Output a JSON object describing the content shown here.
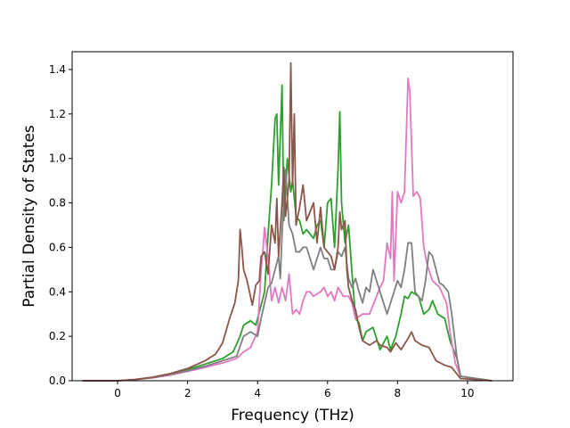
{
  "chart_data": {
    "type": "line",
    "title": "",
    "xlabel": "Frequency (THz)",
    "ylabel": "Partial Density of States",
    "xlim": [
      -1.3,
      11.3
    ],
    "ylim": [
      0,
      1.48
    ],
    "xticks": [
      0,
      2,
      4,
      6,
      8,
      10
    ],
    "yticks": [
      0.0,
      0.2,
      0.4,
      0.6,
      0.8,
      1.0,
      1.2,
      1.4
    ],
    "xtick_labels": [
      "0",
      "2",
      "4",
      "6",
      "8",
      "10"
    ],
    "ytick_labels": [
      "0.0",
      "0.2",
      "0.4",
      "0.6",
      "0.8",
      "1.0",
      "1.2",
      "1.4"
    ],
    "grid": false,
    "legend": "none",
    "series": [
      {
        "color": "#2ca02c",
        "points": [
          [
            -1.0,
            0
          ],
          [
            0,
            0
          ],
          [
            0.5,
            0.005
          ],
          [
            1,
            0.015
          ],
          [
            1.5,
            0.03
          ],
          [
            2,
            0.05
          ],
          [
            2.5,
            0.075
          ],
          [
            3,
            0.1
          ],
          [
            3.3,
            0.13
          ],
          [
            3.5,
            0.2
          ],
          [
            3.6,
            0.25
          ],
          [
            3.8,
            0.27
          ],
          [
            3.95,
            0.25
          ],
          [
            4.1,
            0.34
          ],
          [
            4.2,
            0.4
          ],
          [
            4.3,
            0.66
          ],
          [
            4.4,
            0.88
          ],
          [
            4.5,
            1.18
          ],
          [
            4.55,
            1.2
          ],
          [
            4.6,
            0.88
          ],
          [
            4.7,
            1.33
          ],
          [
            4.75,
            0.72
          ],
          [
            4.85,
            1.0
          ],
          [
            4.95,
            0.85
          ],
          [
            5.0,
            0.9
          ],
          [
            5.1,
            0.74
          ],
          [
            5.2,
            0.72
          ],
          [
            5.3,
            0.66
          ],
          [
            5.4,
            0.68
          ],
          [
            5.5,
            0.66
          ],
          [
            5.6,
            0.64
          ],
          [
            5.7,
            0.7
          ],
          [
            5.8,
            0.72
          ],
          [
            5.9,
            0.6
          ],
          [
            6.0,
            0.8
          ],
          [
            6.1,
            0.82
          ],
          [
            6.2,
            0.6
          ],
          [
            6.3,
            0.95
          ],
          [
            6.35,
            1.21
          ],
          [
            6.4,
            0.8
          ],
          [
            6.5,
            0.62
          ],
          [
            6.6,
            0.7
          ],
          [
            6.7,
            0.48
          ],
          [
            6.8,
            0.28
          ],
          [
            6.9,
            0.26
          ],
          [
            7.0,
            0.18
          ],
          [
            7.1,
            0.22
          ],
          [
            7.3,
            0.24
          ],
          [
            7.5,
            0.14
          ],
          [
            7.7,
            0.2
          ],
          [
            7.8,
            0.14
          ],
          [
            7.95,
            0.2
          ],
          [
            8.1,
            0.3
          ],
          [
            8.2,
            0.38
          ],
          [
            8.3,
            0.37
          ],
          [
            8.4,
            0.4
          ],
          [
            8.6,
            0.38
          ],
          [
            8.75,
            0.3
          ],
          [
            8.9,
            0.32
          ],
          [
            9.0,
            0.36
          ],
          [
            9.15,
            0.3
          ],
          [
            9.35,
            0.28
          ],
          [
            9.5,
            0.18
          ],
          [
            9.7,
            0.1
          ],
          [
            9.8,
            0.02
          ],
          [
            10.7,
            0
          ]
        ]
      },
      {
        "color": "#e377c2",
        "points": [
          [
            -1.0,
            0
          ],
          [
            0,
            0
          ],
          [
            0.5,
            0.005
          ],
          [
            1,
            0.013
          ],
          [
            1.5,
            0.025
          ],
          [
            2,
            0.042
          ],
          [
            2.5,
            0.06
          ],
          [
            3,
            0.08
          ],
          [
            3.4,
            0.1
          ],
          [
            3.6,
            0.13
          ],
          [
            3.8,
            0.15
          ],
          [
            4.0,
            0.22
          ],
          [
            4.1,
            0.5
          ],
          [
            4.15,
            0.58
          ],
          [
            4.2,
            0.69
          ],
          [
            4.3,
            0.55
          ],
          [
            4.4,
            0.36
          ],
          [
            4.5,
            0.42
          ],
          [
            4.6,
            0.35
          ],
          [
            4.7,
            0.42
          ],
          [
            4.8,
            0.36
          ],
          [
            4.9,
            0.48
          ],
          [
            5.0,
            0.3
          ],
          [
            5.1,
            0.32
          ],
          [
            5.2,
            0.3
          ],
          [
            5.3,
            0.36
          ],
          [
            5.4,
            0.4
          ],
          [
            5.5,
            0.4
          ],
          [
            5.6,
            0.38
          ],
          [
            5.8,
            0.4
          ],
          [
            5.9,
            0.42
          ],
          [
            6.0,
            0.38
          ],
          [
            6.1,
            0.4
          ],
          [
            6.2,
            0.36
          ],
          [
            6.3,
            0.42
          ],
          [
            6.45,
            0.38
          ],
          [
            6.6,
            0.38
          ],
          [
            6.7,
            0.35
          ],
          [
            6.8,
            0.28
          ],
          [
            7.0,
            0.3
          ],
          [
            7.2,
            0.3
          ],
          [
            7.4,
            0.38
          ],
          [
            7.5,
            0.42
          ],
          [
            7.6,
            0.45
          ],
          [
            7.7,
            0.62
          ],
          [
            7.8,
            0.55
          ],
          [
            7.85,
            0.85
          ],
          [
            7.9,
            0.45
          ],
          [
            8.0,
            0.85
          ],
          [
            8.1,
            0.8
          ],
          [
            8.2,
            0.85
          ],
          [
            8.3,
            1.36
          ],
          [
            8.35,
            1.3
          ],
          [
            8.45,
            0.83
          ],
          [
            8.55,
            0.85
          ],
          [
            8.65,
            0.82
          ],
          [
            8.75,
            0.6
          ],
          [
            8.85,
            0.52
          ],
          [
            9.0,
            0.45
          ],
          [
            9.2,
            0.42
          ],
          [
            9.4,
            0.35
          ],
          [
            9.5,
            0.22
          ],
          [
            9.65,
            0.08
          ],
          [
            9.8,
            0.02
          ],
          [
            10.7,
            0
          ]
        ]
      },
      {
        "color": "#7f7f7f",
        "points": [
          [
            -1.0,
            0
          ],
          [
            0,
            0
          ],
          [
            0.5,
            0.005
          ],
          [
            1,
            0.014
          ],
          [
            1.5,
            0.028
          ],
          [
            2,
            0.045
          ],
          [
            2.5,
            0.065
          ],
          [
            3,
            0.09
          ],
          [
            3.4,
            0.11
          ],
          [
            3.6,
            0.2
          ],
          [
            3.8,
            0.22
          ],
          [
            4.0,
            0.2
          ],
          [
            4.1,
            0.28
          ],
          [
            4.3,
            0.42
          ],
          [
            4.4,
            0.44
          ],
          [
            4.5,
            0.5
          ],
          [
            4.6,
            0.56
          ],
          [
            4.65,
            0.46
          ],
          [
            4.7,
            0.66
          ],
          [
            4.8,
            0.95
          ],
          [
            4.9,
            0.7
          ],
          [
            5.0,
            0.66
          ],
          [
            5.1,
            0.58
          ],
          [
            5.2,
            0.58
          ],
          [
            5.3,
            0.6
          ],
          [
            5.4,
            0.6
          ],
          [
            5.5,
            0.55
          ],
          [
            5.6,
            0.5
          ],
          [
            5.7,
            0.55
          ],
          [
            5.8,
            0.6
          ],
          [
            5.9,
            0.55
          ],
          [
            6.0,
            0.55
          ],
          [
            6.1,
            0.5
          ],
          [
            6.2,
            0.5
          ],
          [
            6.3,
            0.58
          ],
          [
            6.4,
            0.56
          ],
          [
            6.5,
            0.6
          ],
          [
            6.6,
            0.46
          ],
          [
            6.7,
            0.42
          ],
          [
            6.8,
            0.46
          ],
          [
            6.9,
            0.4
          ],
          [
            7.0,
            0.35
          ],
          [
            7.1,
            0.42
          ],
          [
            7.2,
            0.4
          ],
          [
            7.3,
            0.5
          ],
          [
            7.5,
            0.4
          ],
          [
            7.7,
            0.3
          ],
          [
            7.8,
            0.35
          ],
          [
            8.0,
            0.45
          ],
          [
            8.1,
            0.42
          ],
          [
            8.2,
            0.5
          ],
          [
            8.3,
            0.62
          ],
          [
            8.4,
            0.62
          ],
          [
            8.5,
            0.4
          ],
          [
            8.6,
            0.38
          ],
          [
            8.7,
            0.36
          ],
          [
            8.8,
            0.45
          ],
          [
            8.9,
            0.58
          ],
          [
            9.0,
            0.56
          ],
          [
            9.1,
            0.5
          ],
          [
            9.2,
            0.44
          ],
          [
            9.3,
            0.43
          ],
          [
            9.45,
            0.4
          ],
          [
            9.55,
            0.3
          ],
          [
            9.7,
            0.1
          ],
          [
            9.8,
            0.02
          ],
          [
            10.7,
            0
          ]
        ]
      },
      {
        "color": "#8c564b",
        "points": [
          [
            -1.0,
            0
          ],
          [
            0,
            0
          ],
          [
            0.5,
            0.006
          ],
          [
            1,
            0.016
          ],
          [
            1.5,
            0.032
          ],
          [
            2,
            0.055
          ],
          [
            2.5,
            0.09
          ],
          [
            2.8,
            0.12
          ],
          [
            3.0,
            0.17
          ],
          [
            3.2,
            0.28
          ],
          [
            3.35,
            0.35
          ],
          [
            3.45,
            0.45
          ],
          [
            3.5,
            0.68
          ],
          [
            3.55,
            0.6
          ],
          [
            3.6,
            0.5
          ],
          [
            3.7,
            0.45
          ],
          [
            3.85,
            0.34
          ],
          [
            3.95,
            0.43
          ],
          [
            4.05,
            0.45
          ],
          [
            4.1,
            0.56
          ],
          [
            4.2,
            0.58
          ],
          [
            4.3,
            0.48
          ],
          [
            4.4,
            0.7
          ],
          [
            4.5,
            0.62
          ],
          [
            4.55,
            0.82
          ],
          [
            4.6,
            0.56
          ],
          [
            4.7,
            0.8
          ],
          [
            4.75,
            0.96
          ],
          [
            4.8,
            0.74
          ],
          [
            4.9,
            0.9
          ],
          [
            4.95,
            1.43
          ],
          [
            5.0,
            0.88
          ],
          [
            5.05,
            1.2
          ],
          [
            5.1,
            0.7
          ],
          [
            5.2,
            0.78
          ],
          [
            5.3,
            0.88
          ],
          [
            5.4,
            0.72
          ],
          [
            5.5,
            0.76
          ],
          [
            5.6,
            0.8
          ],
          [
            5.7,
            0.62
          ],
          [
            5.8,
            0.78
          ],
          [
            5.9,
            0.6
          ],
          [
            6.0,
            0.58
          ],
          [
            6.1,
            0.56
          ],
          [
            6.2,
            0.5
          ],
          [
            6.3,
            0.6
          ],
          [
            6.35,
            0.76
          ],
          [
            6.4,
            0.68
          ],
          [
            6.5,
            0.72
          ],
          [
            6.55,
            0.5
          ],
          [
            6.6,
            0.42
          ],
          [
            6.7,
            0.36
          ],
          [
            6.8,
            0.32
          ],
          [
            6.9,
            0.24
          ],
          [
            7.0,
            0.18
          ],
          [
            7.2,
            0.16
          ],
          [
            7.4,
            0.18
          ],
          [
            7.5,
            0.16
          ],
          [
            7.7,
            0.15
          ],
          [
            7.8,
            0.13
          ],
          [
            7.95,
            0.17
          ],
          [
            8.1,
            0.14
          ],
          [
            8.3,
            0.19
          ],
          [
            8.4,
            0.22
          ],
          [
            8.5,
            0.18
          ],
          [
            8.7,
            0.16
          ],
          [
            8.9,
            0.15
          ],
          [
            9.1,
            0.09
          ],
          [
            9.35,
            0.07
          ],
          [
            9.55,
            0.06
          ],
          [
            9.7,
            0.03
          ],
          [
            9.8,
            0.01
          ],
          [
            10.7,
            0
          ]
        ]
      }
    ]
  }
}
